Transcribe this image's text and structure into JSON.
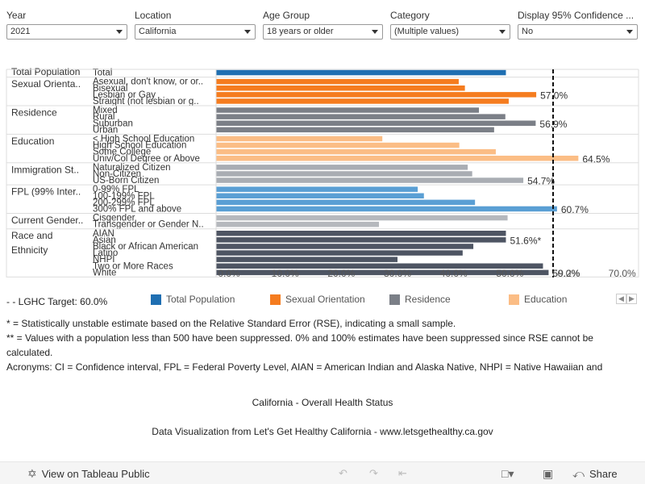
{
  "filters": [
    {
      "label": "Year",
      "value": "2021"
    },
    {
      "label": "Location",
      "value": "California"
    },
    {
      "label": "Age Group",
      "value": "18 years or older"
    },
    {
      "label": "Category",
      "value": "(Multiple values)"
    },
    {
      "label": "Display 95% Confidence ...",
      "value": "No"
    }
  ],
  "chart_data": {
    "type": "bar",
    "orientation": "horizontal",
    "title": "California - Overall Health Status",
    "xlabel": "",
    "ylabel": "",
    "xlim": [
      0,
      70
    ],
    "xticks": [
      "0.0%",
      "10.0%",
      "20.0%",
      "30.0%",
      "40.0%",
      "50.0%",
      "60.0%",
      "70.0%"
    ],
    "reference_line": {
      "label": "LGHC Target",
      "value": 60.0,
      "display": "60.0%",
      "style": "dashed"
    },
    "groups": [
      {
        "name": "Total Population",
        "display": "Total Population",
        "color": "#1f6fb2",
        "rows": [
          {
            "label": "Total",
            "value": 51.6
          }
        ]
      },
      {
        "name": "Sexual Orientation",
        "display": "Sexual Orienta..",
        "color": "#f57c1f",
        "rows": [
          {
            "label": "Asexual, don't know, or or..",
            "value": 43.2
          },
          {
            "label": "Bisexual",
            "value": 44.3
          },
          {
            "label": "Lesbian or Gay",
            "value": 57.0,
            "data_label": "57.0%"
          },
          {
            "label": "Straight (not lesbian or g..",
            "value": 52.1
          }
        ]
      },
      {
        "name": "Residence",
        "display": "Residence",
        "color": "#7b7f87",
        "rows": [
          {
            "label": "Mixed",
            "value": 46.8
          },
          {
            "label": "Rural",
            "value": 51.5
          },
          {
            "label": "Suburban",
            "value": 56.9,
            "data_label": "56.9%"
          },
          {
            "label": "Urban",
            "value": 49.5
          }
        ]
      },
      {
        "name": "Education",
        "display": "Education",
        "color": "#fbbd85",
        "rows": [
          {
            "label": "< High School Education",
            "value": 29.6
          },
          {
            "label": "High School Education",
            "value": 43.3
          },
          {
            "label": "Some College",
            "value": 49.8
          },
          {
            "label": "Univ/Col Degree or Above",
            "value": 64.5,
            "data_label": "64.5%"
          }
        ]
      },
      {
        "name": "Immigration Status",
        "display": "Immigration St..",
        "color": "#a9adb3",
        "rows": [
          {
            "label": "Naturalized Citizen",
            "value": 44.8
          },
          {
            "label": "Non-Citizen",
            "value": 45.6
          },
          {
            "label": "US-Born Citizen",
            "value": 54.7,
            "data_label": "54.7%"
          }
        ]
      },
      {
        "name": "FPL (99% Interval)",
        "display": "FPL (99% Inter..",
        "color": "#5a9fd4",
        "rows": [
          {
            "label": "0-99% FPL",
            "value": 35.9
          },
          {
            "label": "100-199% FPL",
            "value": 37.0
          },
          {
            "label": "200-299% FPL",
            "value": 46.1
          },
          {
            "label": "300% FPL and above",
            "value": 60.7,
            "data_label": "60.7%"
          }
        ]
      },
      {
        "name": "Current Gender",
        "display": "Current Gender..",
        "color": "#b5b8bd",
        "rows": [
          {
            "label": "Cisgender",
            "value": 51.9
          },
          {
            "label": "Transgender or Gender N..",
            "value": 29.0
          }
        ]
      },
      {
        "name": "Race and Ethnicity",
        "display": "Race and\nEthnicity",
        "color": "#4e5563",
        "rows": [
          {
            "label": "AIAN",
            "value": 51.6
          },
          {
            "label": "Asian",
            "value": 51.6,
            "data_label": "51.6%*"
          },
          {
            "label": "Black or African American",
            "value": 45.8
          },
          {
            "label": "Latino",
            "value": 43.9
          },
          {
            "label": "NHPI",
            "value": 32.3
          },
          {
            "label": "Two or More Races",
            "value": 58.2
          },
          {
            "label": "White",
            "value": 59.2,
            "data_label": "59.2%"
          }
        ]
      }
    ],
    "legend": {
      "placement": "bottom",
      "entries": [
        {
          "label": "Total Population",
          "color": "#1f6fb2"
        },
        {
          "label": "Sexual Orientation",
          "color": "#f57c1f"
        },
        {
          "label": "Residence",
          "color": "#7b7f87"
        },
        {
          "label": "Education",
          "color": "#fbbd85"
        }
      ]
    },
    "grid": false
  },
  "legend_target": {
    "prefix": "- - LGHC Target:",
    "value": "60.0%"
  },
  "notes": [
    "* = Statistically unstable estimate based on the Relative Standard Error (RSE), indicating a small sample.",
    "** = Values with a population less than 500 have been suppressed. 0% and 100% estimates have been suppressed since RSE cannot be calculated.",
    "Acronyms: CI = Confidence interval, FPL = Federal Poverty Level, AIAN = American Indian and Alaska Native, NHPI = Native Hawaiian and"
  ],
  "footer": {
    "title": "California - Overall Health Status",
    "credit": "Data Visualization from Let's Get Healthy California - www.letsgethealthy.ca.gov"
  },
  "toolbar": {
    "view_label": "View on Tableau Public",
    "share_label": "Share"
  }
}
